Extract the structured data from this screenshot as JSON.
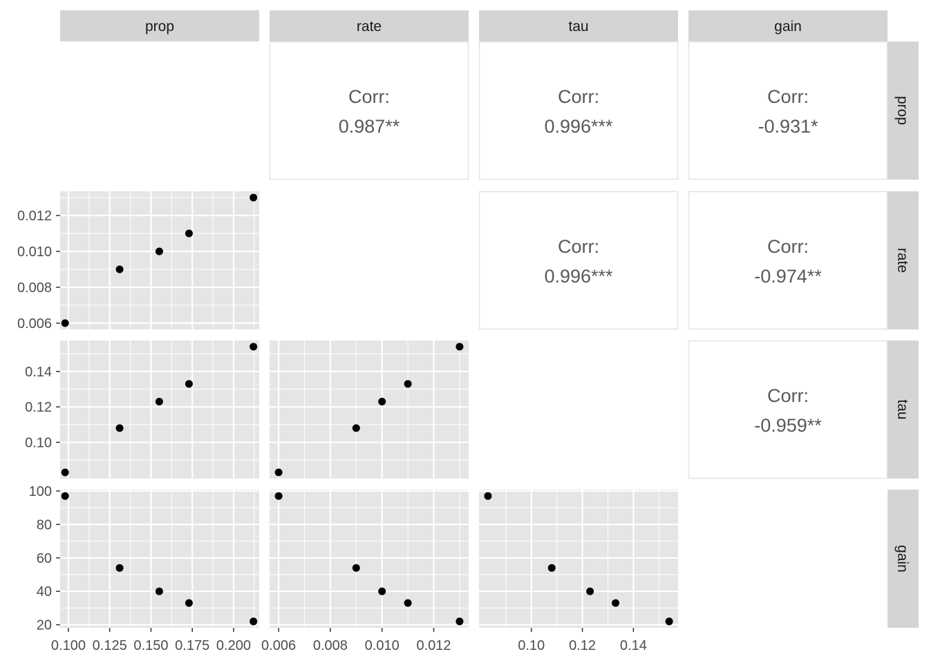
{
  "chart_data": {
    "type": "scatter",
    "variables": [
      "prop",
      "rate",
      "tau",
      "gain"
    ],
    "observations": {
      "prop": [
        0.098,
        0.131,
        0.155,
        0.173,
        0.212
      ],
      "rate": [
        0.006,
        0.009,
        0.01,
        0.011,
        0.013
      ],
      "tau": [
        0.083,
        0.108,
        0.123,
        0.133,
        0.154
      ],
      "gain": [
        97,
        54,
        40,
        33,
        22
      ]
    },
    "correlations": [
      {
        "row": "prop",
        "col": "rate",
        "label": "Corr:",
        "value": "0.987**"
      },
      {
        "row": "prop",
        "col": "tau",
        "label": "Corr:",
        "value": "0.996***"
      },
      {
        "row": "prop",
        "col": "gain",
        "label": "Corr:",
        "value": "-0.931*"
      },
      {
        "row": "rate",
        "col": "tau",
        "label": "Corr:",
        "value": "0.996***"
      },
      {
        "row": "rate",
        "col": "gain",
        "label": "Corr:",
        "value": "-0.974**"
      },
      {
        "row": "tau",
        "col": "gain",
        "label": "Corr:",
        "value": "-0.959**"
      }
    ],
    "axes": {
      "prop": {
        "range": [
          0.095,
          0.2155
        ],
        "ticks": [
          0.1,
          0.125,
          0.15,
          0.175,
          0.2
        ],
        "tick_labels": [
          "0.100",
          "0.125",
          "0.150",
          "0.175",
          "0.200"
        ],
        "minor": [
          0.1125,
          0.1375,
          0.1625,
          0.1875,
          0.2125
        ]
      },
      "rate": {
        "range": [
          0.00565,
          0.01335
        ],
        "ticks": [
          0.006,
          0.008,
          0.01,
          0.012
        ],
        "tick_labels": [
          "0.006",
          "0.008",
          "0.010",
          "0.012"
        ],
        "minor": [
          0.007,
          0.009,
          0.011,
          0.013
        ]
      },
      "tau": {
        "range": [
          0.0795,
          0.1575
        ],
        "ticks": [
          0.1,
          0.12,
          0.14
        ],
        "tick_labels": [
          "0.10",
          "0.12",
          "0.14"
        ],
        "minor": [
          0.09,
          0.11,
          0.13,
          0.15
        ]
      },
      "gain": {
        "range": [
          18.2,
          100.8
        ],
        "ticks": [
          20,
          40,
          60,
          80,
          100
        ],
        "tick_labels": [
          "20",
          "40",
          "60",
          "80",
          "100"
        ],
        "minor": [
          30,
          50,
          70,
          90
        ]
      }
    },
    "grid": true,
    "colors": {
      "panel_bg": "#e5e5e5",
      "grid": "#ffffff",
      "strip_bg": "#d4d4d4",
      "point": "#000000",
      "corr_text": "#595959",
      "border": "#e3e3e3"
    }
  }
}
